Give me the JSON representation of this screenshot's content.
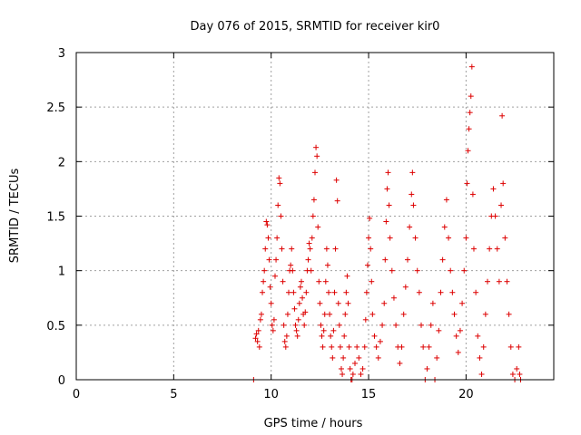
{
  "chart_data": {
    "type": "scatter",
    "title": "Day 076 of 2015, SRMTID for receiver kir0",
    "xlabel": "GPS time / hours",
    "ylabel": "SRMTID / TECUs",
    "xlim": [
      0,
      24.5
    ],
    "ylim": [
      0,
      3
    ],
    "xticks": [
      0,
      5,
      10,
      15,
      20
    ],
    "xtick_labels": [
      "0",
      "5",
      "10",
      "15",
      "20"
    ],
    "yticks": [
      0,
      0.5,
      1,
      1.5,
      2,
      2.5,
      3
    ],
    "ytick_labels": [
      "0",
      "0.5",
      "1",
      "1.5",
      "2",
      "2.5",
      "3"
    ],
    "grid": true,
    "marker": "plus",
    "color": "#dd0000",
    "series": [
      {
        "name": "SRMTID",
        "points": [
          [
            9.1,
            0.0
          ],
          [
            9.2,
            0.38
          ],
          [
            9.25,
            0.42
          ],
          [
            9.3,
            0.35
          ],
          [
            9.35,
            0.45
          ],
          [
            9.4,
            0.3
          ],
          [
            9.45,
            0.55
          ],
          [
            9.5,
            0.6
          ],
          [
            9.55,
            0.8
          ],
          [
            9.6,
            0.9
          ],
          [
            9.65,
            1.0
          ],
          [
            9.7,
            1.2
          ],
          [
            9.75,
            1.45
          ],
          [
            9.8,
            1.42
          ],
          [
            9.85,
            1.3
          ],
          [
            9.9,
            1.1
          ],
          [
            9.95,
            0.85
          ],
          [
            10.0,
            0.7
          ],
          [
            10.05,
            0.5
          ],
          [
            10.1,
            0.45
          ],
          [
            10.15,
            0.55
          ],
          [
            10.2,
            0.95
          ],
          [
            10.25,
            1.1
          ],
          [
            10.3,
            1.3
          ],
          [
            10.35,
            1.6
          ],
          [
            10.4,
            1.85
          ],
          [
            10.45,
            1.8
          ],
          [
            10.5,
            1.5
          ],
          [
            10.55,
            1.2
          ],
          [
            10.6,
            0.9
          ],
          [
            10.65,
            0.5
          ],
          [
            10.7,
            0.35
          ],
          [
            10.75,
            0.3
          ],
          [
            10.8,
            0.4
          ],
          [
            10.85,
            0.6
          ],
          [
            10.9,
            0.8
          ],
          [
            10.95,
            1.0
          ],
          [
            11.0,
            1.05
          ],
          [
            11.05,
            1.2
          ],
          [
            11.1,
            1.0
          ],
          [
            11.15,
            0.8
          ],
          [
            11.2,
            0.65
          ],
          [
            11.25,
            0.5
          ],
          [
            11.3,
            0.45
          ],
          [
            11.35,
            0.4
          ],
          [
            11.4,
            0.55
          ],
          [
            11.45,
            0.7
          ],
          [
            11.5,
            0.85
          ],
          [
            11.55,
            0.9
          ],
          [
            11.6,
            0.75
          ],
          [
            11.65,
            0.6
          ],
          [
            11.7,
            0.5
          ],
          [
            11.75,
            0.62
          ],
          [
            11.8,
            0.8
          ],
          [
            11.85,
            1.0
          ],
          [
            11.9,
            1.1
          ],
          [
            11.95,
            1.25
          ],
          [
            12.0,
            1.2
          ],
          [
            12.05,
            1.0
          ],
          [
            12.1,
            1.3
          ],
          [
            12.15,
            1.5
          ],
          [
            12.2,
            1.65
          ],
          [
            12.25,
            1.9
          ],
          [
            12.3,
            2.13
          ],
          [
            12.35,
            2.05
          ],
          [
            12.4,
            1.4
          ],
          [
            12.45,
            0.9
          ],
          [
            12.5,
            0.7
          ],
          [
            12.55,
            0.5
          ],
          [
            12.6,
            0.4
          ],
          [
            12.65,
            0.3
          ],
          [
            12.7,
            0.45
          ],
          [
            12.75,
            0.6
          ],
          [
            12.8,
            0.9
          ],
          [
            12.85,
            1.2
          ],
          [
            12.9,
            1.05
          ],
          [
            12.95,
            0.8
          ],
          [
            13.0,
            0.6
          ],
          [
            13.05,
            0.4
          ],
          [
            13.1,
            0.3
          ],
          [
            13.15,
            0.2
          ],
          [
            13.2,
            0.45
          ],
          [
            13.25,
            0.8
          ],
          [
            13.3,
            1.2
          ],
          [
            13.35,
            1.83
          ],
          [
            13.4,
            1.64
          ],
          [
            13.45,
            0.7
          ],
          [
            13.5,
            0.5
          ],
          [
            13.55,
            0.3
          ],
          [
            13.6,
            0.1
          ],
          [
            13.65,
            0.05
          ],
          [
            13.7,
            0.2
          ],
          [
            13.75,
            0.4
          ],
          [
            13.8,
            0.6
          ],
          [
            13.85,
            0.8
          ],
          [
            13.9,
            0.95
          ],
          [
            13.95,
            0.7
          ],
          [
            14.0,
            0.3
          ],
          [
            14.05,
            0.1
          ],
          [
            14.1,
            0.0
          ],
          [
            14.15,
            0.0
          ],
          [
            14.2,
            0.05
          ],
          [
            14.3,
            0.15
          ],
          [
            14.4,
            0.3
          ],
          [
            14.5,
            0.2
          ],
          [
            14.6,
            0.05
          ],
          [
            14.7,
            0.1
          ],
          [
            14.8,
            0.3
          ],
          [
            14.85,
            0.55
          ],
          [
            14.9,
            0.8
          ],
          [
            14.95,
            1.05
          ],
          [
            15.0,
            1.3
          ],
          [
            15.05,
            1.48
          ],
          [
            15.1,
            1.2
          ],
          [
            15.15,
            0.9
          ],
          [
            15.2,
            0.6
          ],
          [
            15.3,
            0.4
          ],
          [
            15.4,
            0.3
          ],
          [
            15.5,
            0.2
          ],
          [
            15.6,
            0.35
          ],
          [
            15.7,
            0.5
          ],
          [
            15.8,
            0.7
          ],
          [
            15.85,
            1.1
          ],
          [
            15.9,
            1.45
          ],
          [
            15.95,
            1.75
          ],
          [
            16.0,
            1.9
          ],
          [
            16.05,
            1.6
          ],
          [
            16.1,
            1.3
          ],
          [
            16.2,
            1.0
          ],
          [
            16.3,
            0.75
          ],
          [
            16.4,
            0.5
          ],
          [
            16.5,
            0.3
          ],
          [
            16.6,
            0.15
          ],
          [
            16.7,
            0.3
          ],
          [
            16.8,
            0.6
          ],
          [
            16.9,
            0.85
          ],
          [
            17.0,
            1.1
          ],
          [
            17.1,
            1.4
          ],
          [
            17.2,
            1.7
          ],
          [
            17.25,
            1.9
          ],
          [
            17.3,
            1.6
          ],
          [
            17.4,
            1.3
          ],
          [
            17.5,
            1.0
          ],
          [
            17.6,
            0.8
          ],
          [
            17.7,
            0.5
          ],
          [
            17.8,
            0.3
          ],
          [
            17.9,
            0.0
          ],
          [
            18.0,
            0.1
          ],
          [
            18.1,
            0.3
          ],
          [
            18.2,
            0.5
          ],
          [
            18.3,
            0.7
          ],
          [
            18.4,
            0.0
          ],
          [
            18.5,
            0.2
          ],
          [
            18.6,
            0.45
          ],
          [
            18.7,
            0.8
          ],
          [
            18.8,
            1.1
          ],
          [
            18.9,
            1.4
          ],
          [
            19.0,
            1.65
          ],
          [
            19.1,
            1.3
          ],
          [
            19.2,
            1.0
          ],
          [
            19.3,
            0.8
          ],
          [
            19.4,
            0.6
          ],
          [
            19.5,
            0.4
          ],
          [
            19.6,
            0.25
          ],
          [
            19.7,
            0.45
          ],
          [
            19.8,
            0.7
          ],
          [
            19.9,
            1.0
          ],
          [
            20.0,
            1.3
          ],
          [
            20.05,
            1.8
          ],
          [
            20.1,
            2.1
          ],
          [
            20.15,
            2.3
          ],
          [
            20.2,
            2.45
          ],
          [
            20.25,
            2.6
          ],
          [
            20.3,
            2.87
          ],
          [
            20.35,
            1.7
          ],
          [
            20.4,
            1.2
          ],
          [
            20.5,
            0.8
          ],
          [
            20.6,
            0.4
          ],
          [
            20.7,
            0.2
          ],
          [
            20.8,
            0.05
          ],
          [
            20.9,
            0.3
          ],
          [
            21.0,
            0.6
          ],
          [
            21.1,
            0.9
          ],
          [
            21.2,
            1.2
          ],
          [
            21.3,
            1.5
          ],
          [
            21.4,
            1.75
          ],
          [
            21.5,
            1.5
          ],
          [
            21.6,
            1.2
          ],
          [
            21.7,
            0.9
          ],
          [
            21.8,
            1.6
          ],
          [
            21.85,
            2.42
          ],
          [
            21.9,
            1.8
          ],
          [
            22.0,
            1.3
          ],
          [
            22.1,
            0.9
          ],
          [
            22.2,
            0.6
          ],
          [
            22.3,
            0.3
          ],
          [
            22.4,
            0.05
          ],
          [
            22.5,
            0.0
          ],
          [
            22.6,
            0.1
          ],
          [
            22.7,
            0.3
          ],
          [
            22.75,
            0.05
          ],
          [
            22.8,
            0.0
          ]
        ]
      }
    ]
  }
}
